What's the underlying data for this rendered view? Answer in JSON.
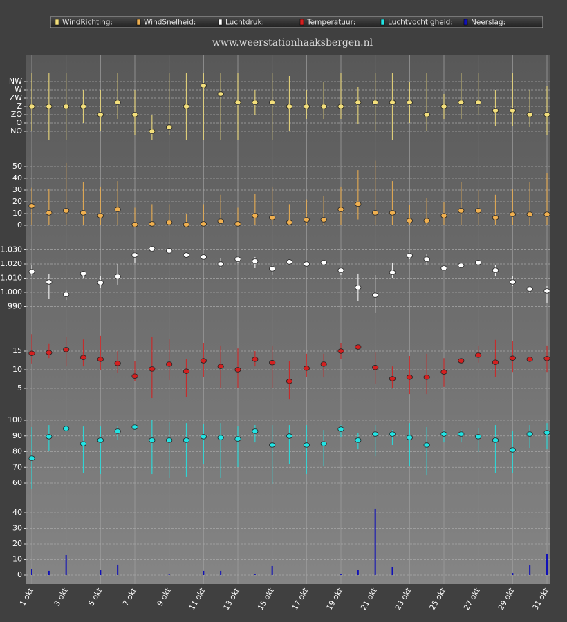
{
  "title": "www.weerstationhaaksbergen.nl",
  "chart_data": [
    {
      "type": "errorbar",
      "grid": true,
      "ylim": [
        0,
        360
      ],
      "yticks": [
        {
          "value": 45,
          "label": "NO"
        },
        {
          "value": 90,
          "label": "O"
        },
        {
          "value": 135,
          "label": "ZO"
        },
        {
          "value": 180,
          "label": "Z"
        },
        {
          "value": 225,
          "label": "ZW"
        },
        {
          "value": 270,
          "label": "W"
        },
        {
          "value": 315,
          "label": "NW"
        }
      ],
      "series": [
        {
          "name": "WindRichting:",
          "color": "#f3df7c",
          "values": [
            180,
            180,
            180,
            180,
            135,
            202.5,
            135,
            45,
            67.5,
            180,
            292.5,
            247.5,
            202.5,
            202.5,
            202.5,
            180,
            180,
            180,
            180,
            202.5,
            202.5,
            202.5,
            202.5,
            135,
            180,
            202.5,
            202.5,
            157.5,
            157.5,
            135,
            135
          ],
          "high": [
            360,
            360,
            360,
            270,
            270,
            360,
            270,
            135,
            360,
            360,
            360,
            360,
            360,
            270,
            360,
            345,
            270,
            315,
            360,
            285,
            360,
            360,
            315,
            360,
            247.5,
            360,
            360,
            270,
            360,
            270,
            292.5
          ],
          "low": [
            45,
            0,
            0,
            90,
            45,
            112.5,
            22.5,
            0,
            22.5,
            0,
            0,
            0,
            0,
            135,
            0,
            45,
            112.5,
            112.5,
            112.5,
            82.5,
            45,
            0,
            90,
            45,
            112.5,
            112.5,
            135,
            75,
            75,
            67.5,
            22.5
          ]
        }
      ]
    },
    {
      "type": "errorbar",
      "grid": true,
      "ylim": [
        0,
        55
      ],
      "yticks": [
        0,
        10,
        20,
        30,
        40,
        50
      ],
      "series": [
        {
          "name": "WindSnelheid:",
          "color": "#f0b050",
          "values": [
            16.5,
            10.6,
            12.4,
            10.6,
            8.2,
            13.5,
            0.6,
            1.2,
            2.4,
            0.6,
            1.2,
            3.5,
            1.2,
            8.2,
            6.5,
            2.4,
            4.7,
            4.7,
            13.5,
            18,
            10.6,
            10.6,
            4,
            4,
            8.2,
            12.4,
            12.4,
            6.5,
            9.4,
            9.4,
            9.4
          ],
          "high": [
            32,
            31,
            53,
            36.5,
            33,
            37.6,
            15,
            18,
            18,
            9.4,
            18,
            26,
            15,
            26.5,
            33,
            18,
            22,
            25,
            33,
            47,
            55,
            37.6,
            17.6,
            23.5,
            20,
            36.5,
            30,
            26,
            30.6,
            36.5,
            44.7
          ],
          "low": [
            0,
            0,
            0,
            0,
            0,
            0,
            0,
            0,
            0,
            0,
            0,
            0,
            0,
            0,
            0,
            0,
            0,
            0,
            0,
            5,
            0,
            0,
            0,
            0,
            0,
            0,
            0,
            0,
            0,
            0,
            0
          ]
        }
      ]
    },
    {
      "type": "errorbar",
      "grid": true,
      "ylim": [
        984,
        1038
      ],
      "yticks": [
        990,
        {
          "value": 1000,
          "label": "1.000"
        },
        {
          "value": 1010,
          "label": "1.010"
        },
        {
          "value": 1020,
          "label": "1.020"
        },
        {
          "value": 1030,
          "label": "1.030"
        }
      ],
      "series": [
        {
          "name": "Luchtdruk:",
          "color": "#ffffff",
          "values": [
            1014.6,
            1007.3,
            998.5,
            1013.2,
            1006.8,
            1011.2,
            1026.3,
            1030.7,
            1029.3,
            1026.3,
            1024.9,
            1020,
            1023.4,
            1022,
            1016.6,
            1021.5,
            1020,
            1021,
            1015.6,
            1003.4,
            998,
            1014.1,
            1025.9,
            1023.4,
            1017.1,
            1019,
            1021,
            1015.6,
            1007.3,
            1002.4,
            1001
          ],
          "high": [
            1019.5,
            1012.7,
            1001.5,
            1014.6,
            1011.2,
            1020,
            1028.8,
            1032.2,
            1030.7,
            1027.8,
            1026.3,
            1023.9,
            1025.4,
            1024.9,
            1019,
            1022.9,
            1022,
            1022.9,
            1018,
            1013.2,
            1012.2,
            1021,
            1027.8,
            1026.8,
            1019,
            1020.5,
            1022.4,
            1019.5,
            1011.2,
            1004.4,
            1004.4
          ],
          "low": [
            1011.7,
            995.6,
            994.6,
            1010.2,
            1003.4,
            1005.4,
            1021,
            1028.8,
            1026.8,
            1024.9,
            1023.4,
            1017.1,
            1021,
            1017.1,
            1012.2,
            1020,
            1018.5,
            1019,
            1012.2,
            994.1,
            985.4,
            1010.2,
            1023.4,
            1019,
            1015.1,
            1017.1,
            1019,
            1011.2,
            1004.4,
            999.5,
            992.7
          ]
        }
      ]
    },
    {
      "type": "errorbar",
      "grid": true,
      "ylim": [
        1,
        21
      ],
      "yticks": [
        5,
        10,
        15
      ],
      "series": [
        {
          "name": "Temperatuur:",
          "color": "#d42020",
          "values": [
            14.4,
            14.6,
            15.4,
            13.3,
            12.8,
            11.7,
            8.3,
            10.2,
            11.5,
            9.6,
            12.4,
            10.9,
            10,
            12.8,
            11.9,
            6.9,
            10.4,
            11.5,
            15,
            16.1,
            10.6,
            7.6,
            8,
            8,
            9.4,
            12.4,
            13.9,
            12,
            13.1,
            12.8,
            13
          ],
          "high": [
            19.4,
            16.9,
            18.7,
            18.1,
            19.1,
            15,
            12.4,
            18.7,
            18.3,
            12.8,
            17.2,
            16.5,
            15.7,
            15,
            16.5,
            12.4,
            14.3,
            14.3,
            17.2,
            16.5,
            14.6,
            10.9,
            13.7,
            14.3,
            13.1,
            13.1,
            16.5,
            18,
            17.6,
            13.5,
            16.5
          ],
          "low": [
            11.7,
            13.1,
            10.9,
            10.9,
            10,
            9.1,
            6.9,
            2.4,
            7.2,
            2.6,
            8.1,
            5,
            5,
            10.9,
            5,
            2,
            8.1,
            8.1,
            12.8,
            15.4,
            6.3,
            5,
            3.5,
            3.5,
            5.4,
            11.7,
            11.9,
            8,
            9.4,
            12,
            9.4
          ]
        }
      ]
    },
    {
      "type": "errorbar",
      "grid": true,
      "ylim": [
        55,
        103
      ],
      "yticks": [
        60,
        70,
        80,
        90,
        100
      ],
      "series": [
        {
          "name": "Luchtvochtigheid:",
          "color": "#22e4e4",
          "values": [
            75.8,
            89.5,
            94.7,
            85,
            87.3,
            93,
            95.6,
            87.3,
            87.3,
            87.3,
            89.5,
            89,
            88.1,
            93,
            84.2,
            89.9,
            84.2,
            85,
            94.3,
            87.3,
            91.2,
            91.2,
            89,
            84.2,
            91.2,
            91.2,
            89.5,
            87.3,
            81.1,
            91.2,
            92.1
          ],
          "high": [
            95.6,
            96.9,
            95.6,
            96,
            96,
            96,
            97.4,
            100,
            99.1,
            98.2,
            97.4,
            98.2,
            96,
            96.9,
            96.9,
            96.9,
            96.9,
            93.8,
            96.9,
            92.1,
            96.9,
            93.8,
            98.2,
            95.6,
            93.8,
            93.8,
            94.7,
            96.9,
            93,
            96.9,
            98.2
          ],
          "low": [
            56.5,
            80.7,
            93.8,
            66.6,
            65.7,
            87.7,
            93.8,
            65.7,
            63.1,
            64,
            71.9,
            63.1,
            70.1,
            85.9,
            59.6,
            71.9,
            65.7,
            70.5,
            89,
            81.5,
            77.1,
            84.2,
            70.5,
            64.8,
            85.9,
            85.9,
            79.8,
            66.6,
            66.6,
            82.4,
            81.5
          ]
        }
      ]
    },
    {
      "type": "bar",
      "grid": true,
      "ylim": [
        0,
        48
      ],
      "yticks": [
        0,
        10,
        20,
        30,
        40
      ],
      "categories": [
        "1 okt",
        null,
        "3 okt",
        null,
        "5 okt",
        null,
        "7 okt",
        null,
        "9 okt",
        null,
        "11 okt",
        null,
        "13 okt",
        null,
        "15 okt",
        null,
        "17 okt",
        null,
        "19 okt",
        null,
        "21 okt",
        null,
        "23 okt",
        null,
        "25 okt",
        null,
        "27 okt",
        null,
        "29 okt",
        null,
        "31 okt"
      ],
      "series": [
        {
          "name": "Neerslag:",
          "color": "#1010b8",
          "values": [
            4,
            2.7,
            12.9,
            0,
            3.1,
            6.7,
            0,
            0,
            0.4,
            0,
            2.7,
            2.7,
            0,
            0.4,
            5.8,
            0,
            0,
            0,
            0.4,
            3.1,
            42.7,
            5.3,
            0,
            0,
            0,
            0,
            0,
            0,
            1.3,
            6.2,
            13.8
          ]
        }
      ]
    }
  ]
}
